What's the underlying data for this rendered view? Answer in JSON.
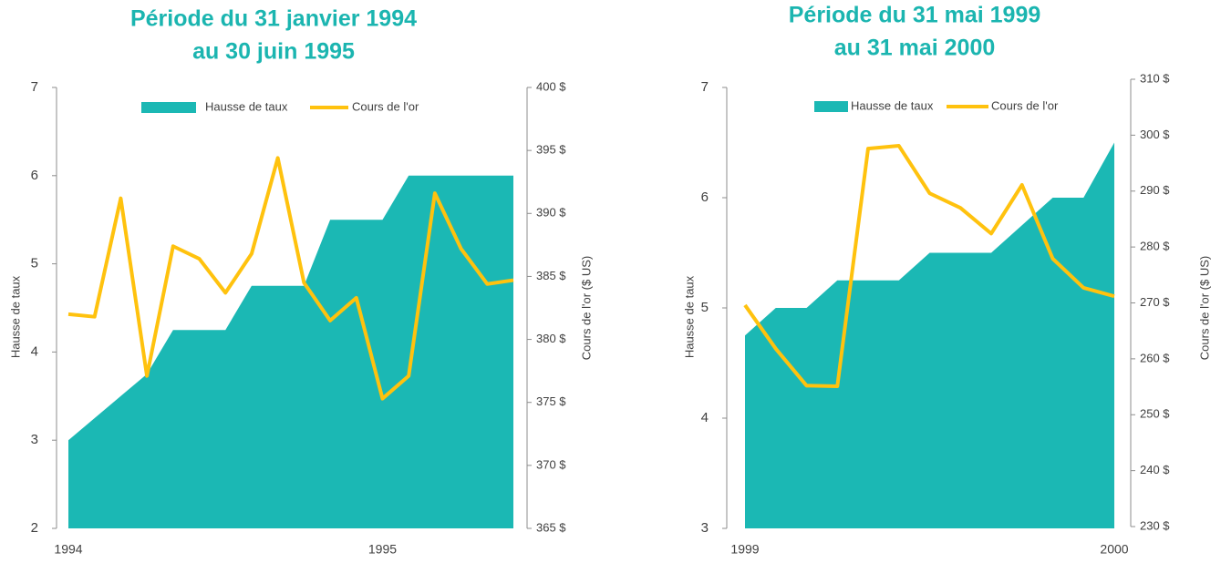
{
  "chart_data": [
    {
      "type": "area-line",
      "title": [
        "Période du 31 janvier 1994",
        "au 30 juin 1995"
      ],
      "ylabel": "Hausse de taux",
      "y2label": "Cours de l'or  ($ US)",
      "categories": [
        "1994",
        null,
        null,
        null,
        null,
        null,
        null,
        null,
        null,
        null,
        null,
        null,
        "1995",
        null,
        null,
        null,
        null,
        null
      ],
      "series": [
        {
          "name": "Hausse de taux",
          "kind": "area",
          "color": "#1bb8b4",
          "values": [
            3,
            3.25,
            3.5,
            3.75,
            4.25,
            4.25,
            4.25,
            4.75,
            4.75,
            4.75,
            5.5,
            5.5,
            5.5,
            6,
            6,
            6,
            6,
            6
          ]
        },
        {
          "name": "Cours de l'or",
          "kind": "line",
          "axis": "y2",
          "color": "#ffc20e",
          "values": [
            382.0,
            381.8,
            391.2,
            377.1,
            387.4,
            386.4,
            383.7,
            386.8,
            394.4,
            384.5,
            381.5,
            383.3,
            375.3,
            377.1,
            391.6,
            387.2,
            384.4,
            384.7
          ]
        }
      ],
      "ylim": [
        2,
        7
      ],
      "yticks": [
        2,
        3,
        4,
        5,
        6,
        7
      ],
      "y2lim": [
        365,
        400
      ],
      "y2ticks": [
        {
          "value": 365,
          "label": "365 $"
        },
        {
          "value": 370,
          "label": "370 $"
        },
        {
          "value": 375,
          "label": "375 $"
        },
        {
          "value": 380,
          "label": "380 $"
        },
        {
          "value": 385,
          "label": "385 $"
        },
        {
          "value": 390,
          "label": "390 $"
        },
        {
          "value": 395,
          "label": "395 $"
        },
        {
          "value": 400,
          "label": "400 $"
        }
      ],
      "legend": "top"
    },
    {
      "type": "area-line",
      "title": [
        "Période du 31 mai 1999",
        "au 31 mai 2000"
      ],
      "ylabel": "Hausse de taux",
      "y2label": "Cours de l'or  ($ US)",
      "categories": [
        "1999",
        null,
        null,
        null,
        null,
        null,
        null,
        null,
        null,
        null,
        null,
        null,
        "2000"
      ],
      "series": [
        {
          "name": "Hausse de taux",
          "kind": "area",
          "color": "#1bb8b4",
          "values": [
            4.75,
            5,
            5,
            5.25,
            5.25,
            5.25,
            5.5,
            5.5,
            5.5,
            5.75,
            6,
            6,
            6.5
          ]
        },
        {
          "name": "Cours de l'or",
          "kind": "line",
          "axis": "y2",
          "color": "#ffc20e",
          "values": [
            269.6,
            261.8,
            255.2,
            255.1,
            297.6,
            298.1,
            289.6,
            287,
            282.4,
            291.1,
            277.9,
            272.7,
            271.2
          ]
        }
      ],
      "ylim": [
        3,
        7
      ],
      "yticks": [
        3,
        4,
        5,
        6,
        7
      ],
      "y2lim": [
        230,
        310
      ],
      "y2ticks": [
        {
          "value": 230,
          "label": "230 $"
        },
        {
          "value": 240,
          "label": "240 $"
        },
        {
          "value": 250,
          "label": "250 $"
        },
        {
          "value": 260,
          "label": "260 $"
        },
        {
          "value": 270,
          "label": "270 $"
        },
        {
          "value": 280,
          "label": "280 $"
        },
        {
          "value": 290,
          "label": "290 $"
        },
        {
          "value": 300,
          "label": "300 $"
        },
        {
          "value": 310,
          "label": "310 $"
        }
      ],
      "legend": "top"
    }
  ]
}
